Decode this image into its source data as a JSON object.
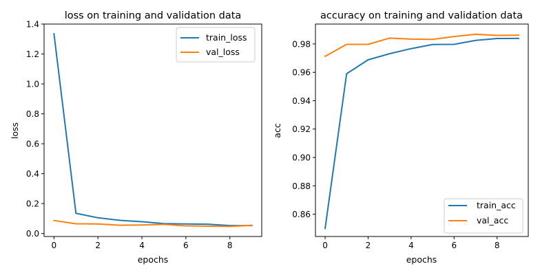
{
  "chart_data": [
    {
      "type": "line",
      "title": "loss on training and validation data",
      "xlabel": "epochs",
      "ylabel": "loss",
      "xlim": [
        -0.45,
        9.45
      ],
      "ylim": [
        -0.02,
        1.4
      ],
      "xticks": [
        0,
        2,
        4,
        6,
        8
      ],
      "xtick_labels": [
        "0",
        "2",
        "4",
        "6",
        "8"
      ],
      "yticks": [
        0.0,
        0.2,
        0.4,
        0.6,
        0.8,
        1.0,
        1.2,
        1.4
      ],
      "ytick_labels": [
        "0.0",
        "0.2",
        "0.4",
        "0.6",
        "0.8",
        "1.0",
        "1.2",
        "1.4"
      ],
      "legend_position": "top-right",
      "x": [
        0,
        1,
        2,
        3,
        4,
        5,
        6,
        7,
        8,
        9
      ],
      "series": [
        {
          "name": "train_loss",
          "color": "#1f77b4",
          "values": [
            1.335,
            0.135,
            0.105,
            0.088,
            0.079,
            0.066,
            0.064,
            0.062,
            0.053,
            0.053
          ]
        },
        {
          "name": "val_loss",
          "color": "#ff7f0e",
          "values": [
            0.087,
            0.065,
            0.064,
            0.055,
            0.057,
            0.061,
            0.051,
            0.049,
            0.047,
            0.055
          ]
        }
      ]
    },
    {
      "type": "line",
      "title": "accuracy on training and validation data",
      "xlabel": "epochs",
      "ylabel": "acc",
      "xlim": [
        -0.45,
        9.45
      ],
      "ylim": [
        0.8443,
        0.994
      ],
      "xticks": [
        0,
        2,
        4,
        6,
        8
      ],
      "xtick_labels": [
        "0",
        "2",
        "4",
        "6",
        "8"
      ],
      "yticks": [
        0.86,
        0.88,
        0.9,
        0.92,
        0.94,
        0.96,
        0.98
      ],
      "ytick_labels": [
        "0.86",
        "0.88",
        "0.90",
        "0.92",
        "0.94",
        "0.96",
        "0.98"
      ],
      "legend_position": "bottom-right",
      "x": [
        0,
        1,
        2,
        3,
        4,
        5,
        6,
        7,
        8,
        9
      ],
      "series": [
        {
          "name": "train_acc",
          "color": "#1f77b4",
          "values": [
            0.85,
            0.959,
            0.9688,
            0.9731,
            0.9767,
            0.9796,
            0.9797,
            0.9825,
            0.9838,
            0.9839
          ]
        },
        {
          "name": "val_acc",
          "color": "#ff7f0e",
          "values": [
            0.9713,
            0.9797,
            0.9797,
            0.9841,
            0.9834,
            0.9832,
            0.9852,
            0.9868,
            0.986,
            0.9862
          ]
        }
      ]
    }
  ]
}
